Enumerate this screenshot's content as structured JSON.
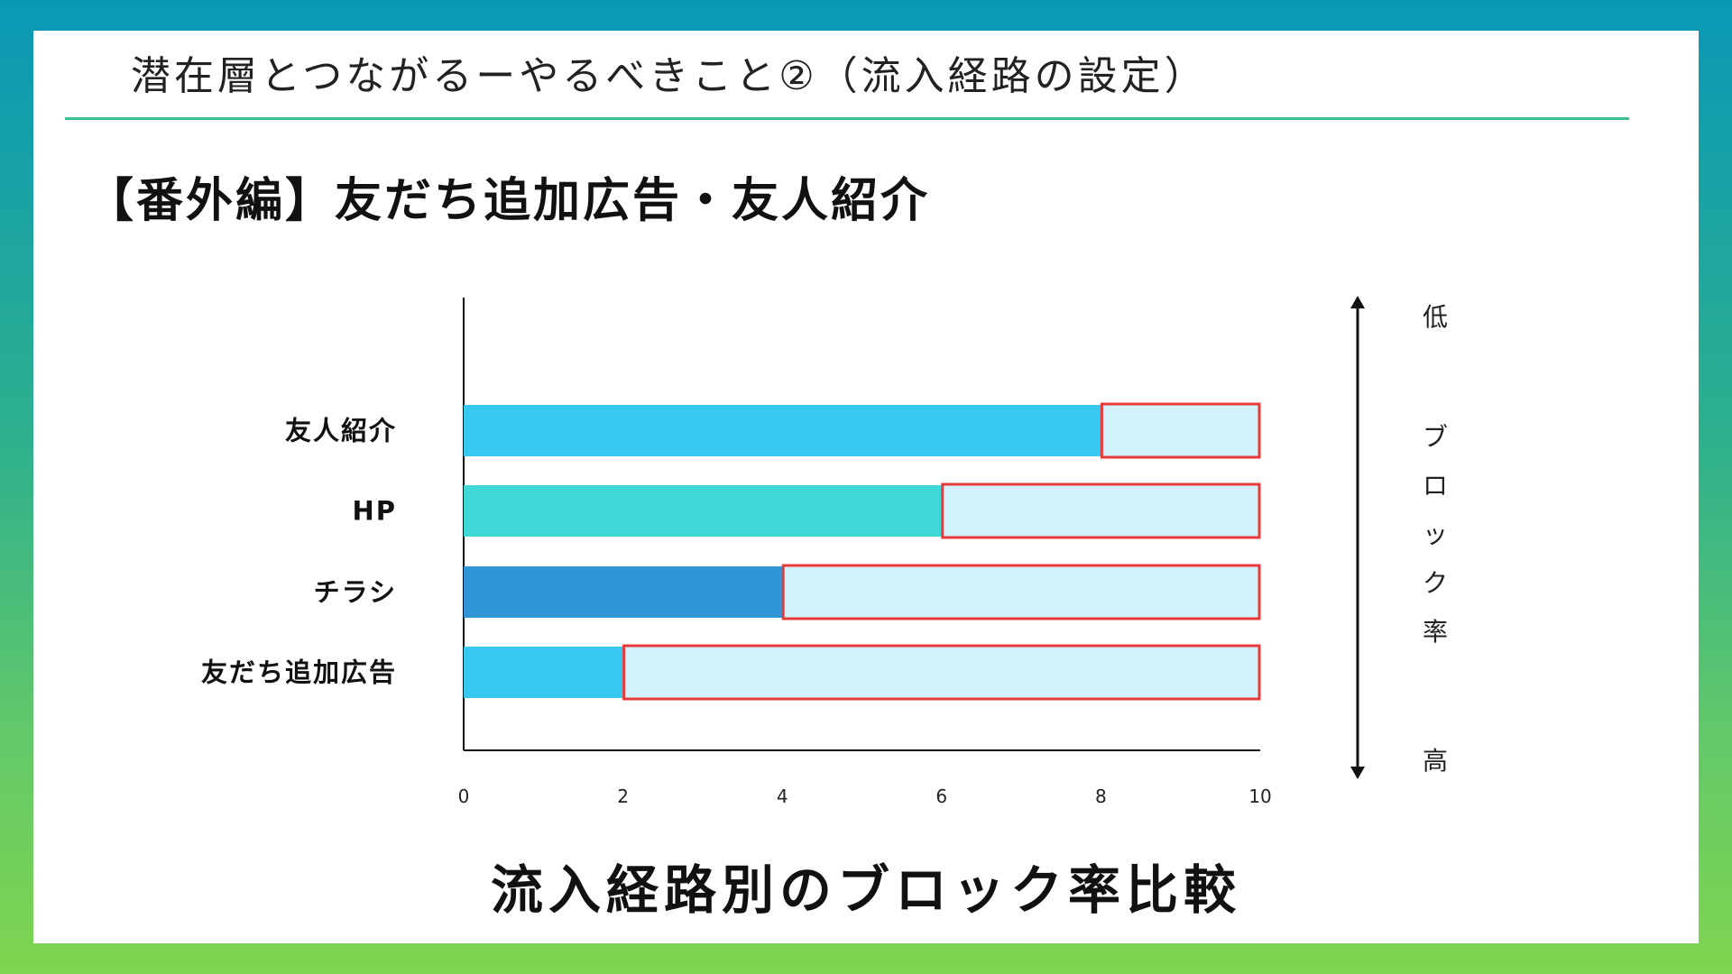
{
  "slide": {
    "subtitle": "潜在層とつながるーやるべきこと②（流入経路の設定）",
    "heading": "【番外編】友だち追加広告・友人紹介",
    "caption": "流入経路別のブロック率比較"
  },
  "scale_note": {
    "top": "低",
    "middle": "ブロック率",
    "bottom": "高"
  },
  "chart_data": {
    "type": "bar",
    "orientation": "horizontal",
    "stacked": true,
    "title": "流入経路別のブロック率比較",
    "xlabel": "",
    "ylabel": "",
    "xlim": [
      0,
      10
    ],
    "xticks": [
      "0",
      "2",
      "4",
      "6",
      "8",
      "10"
    ],
    "categories": [
      "友人紹介",
      "HP",
      "チラシ",
      "友だち追加広告"
    ],
    "series": [
      {
        "values": [
          8,
          6,
          4,
          2
        ],
        "colors": [
          "#38c8ef",
          "#3ed8d6",
          "#2f95d6",
          "#38c8ef"
        ]
      },
      {
        "values": [
          2,
          4,
          6,
          8
        ],
        "fill": "#d2f2fb",
        "highlight_border": "#e83a3a"
      }
    ],
    "grid": false,
    "legend": "none"
  }
}
